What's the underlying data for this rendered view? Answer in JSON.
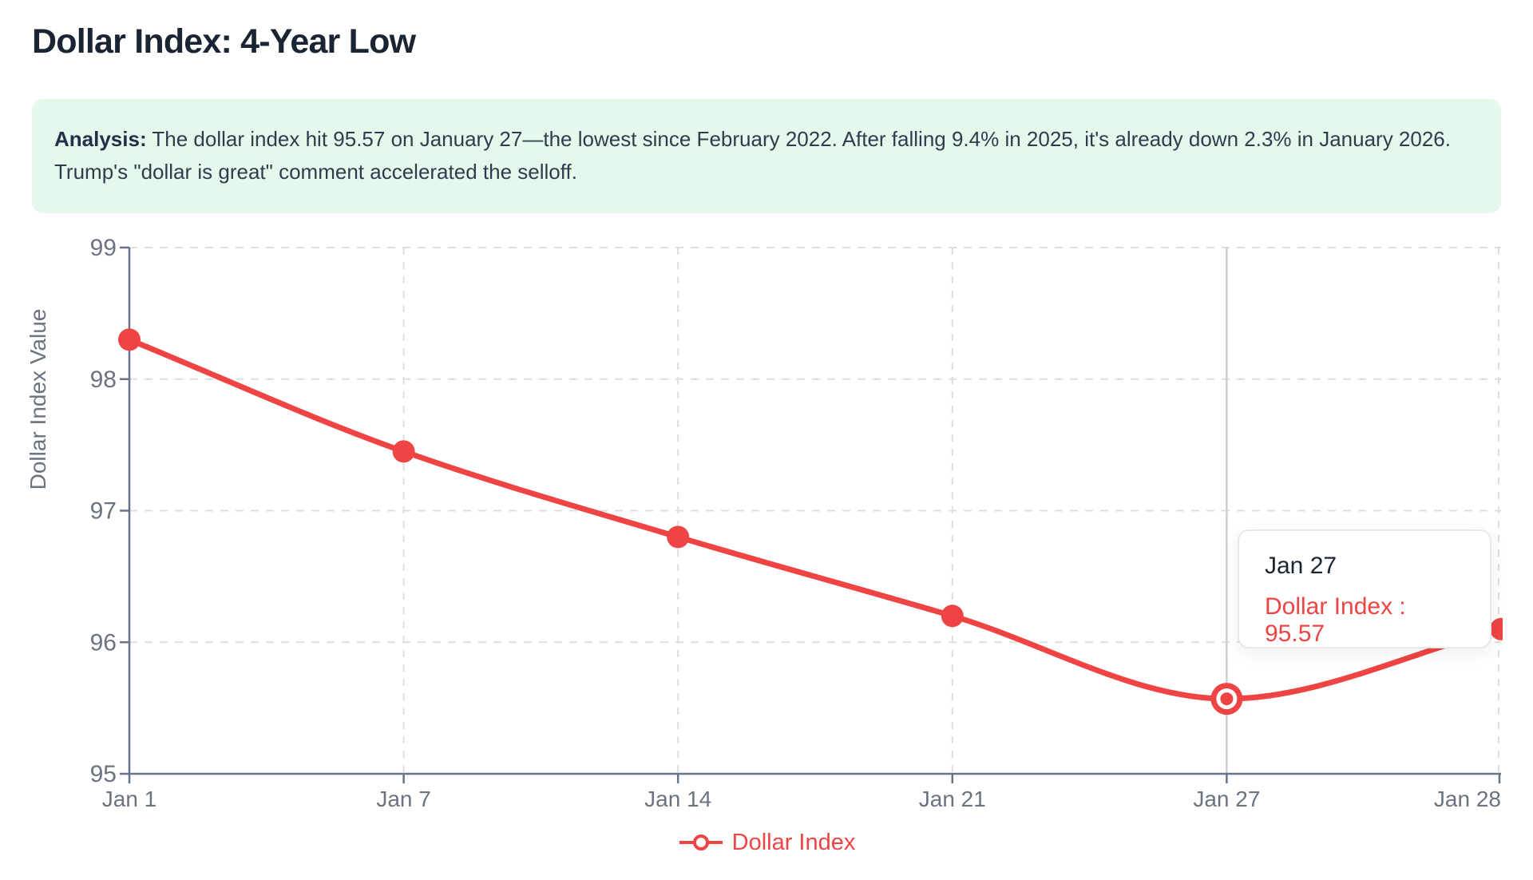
{
  "page": {
    "title": "Dollar Index: 4-Year Low"
  },
  "analysis": {
    "label": "Analysis:",
    "text": "The dollar index hit 95.57 on January 27—the lowest since February 2022. After falling 9.4% in 2025, it's already down 2.3% in January 2026. Trump's \"dollar is great\" comment accelerated the selloff."
  },
  "tooltip": {
    "date": "Jan 27",
    "entry": "Dollar Index : 95.57"
  },
  "legend": {
    "label": "Dollar Index"
  },
  "chart_data": {
    "type": "line",
    "x": [
      "Jan 1",
      "Jan 7",
      "Jan 14",
      "Jan 21",
      "Jan 27",
      "Jan 28"
    ],
    "series": [
      {
        "name": "Dollar Index",
        "values": [
          98.3,
          97.45,
          96.8,
          96.2,
          95.57,
          96.1
        ]
      }
    ],
    "ylabel": "Dollar Index Value",
    "yticks": [
      95,
      96,
      97,
      98,
      99
    ],
    "ylim": [
      95,
      99
    ],
    "grid": true,
    "legend_position": "bottom",
    "active_point": {
      "x": "Jan 27",
      "value": 95.57
    },
    "colors": {
      "line": "#ef4444",
      "axis": "#64748b",
      "tick_text": "#6b7280",
      "grid": "#dedede",
      "reference_line": "#cfcfcf"
    }
  }
}
